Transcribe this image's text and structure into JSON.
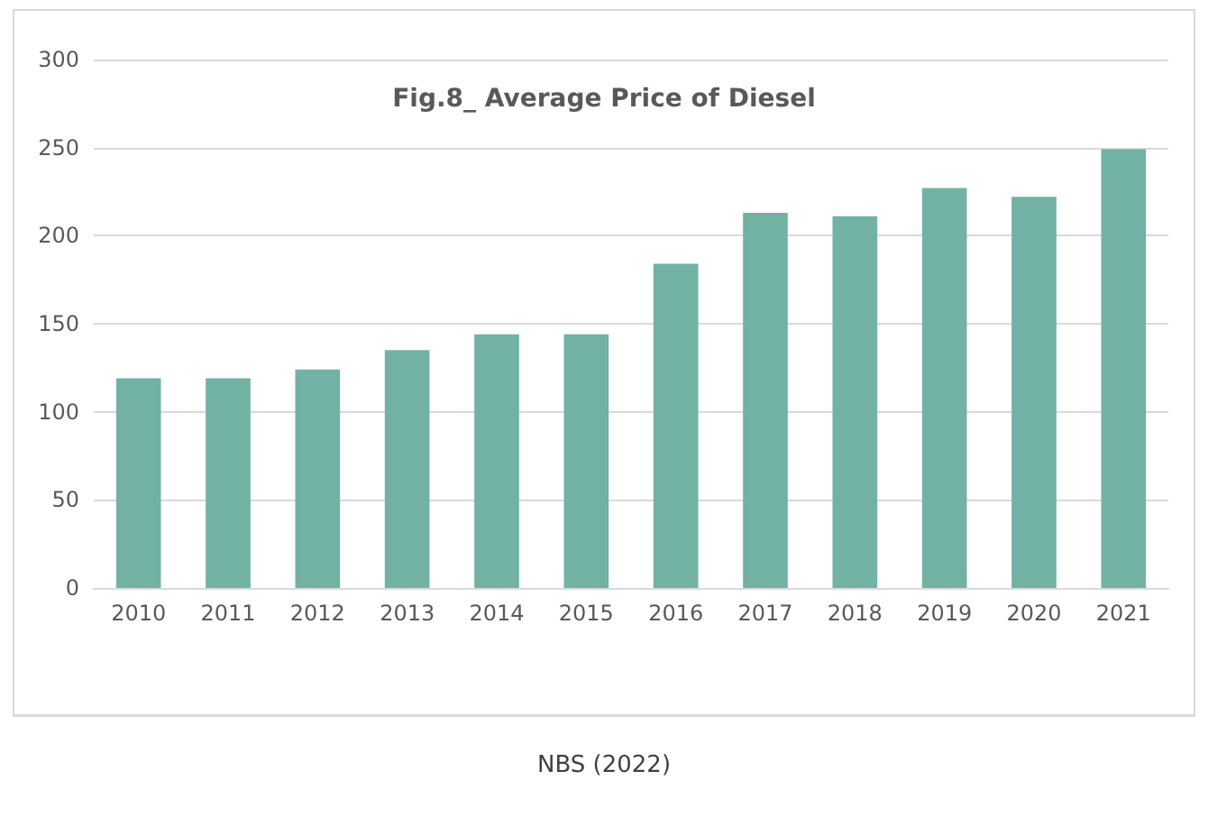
{
  "chart_data": {
    "type": "bar",
    "title": "Fig.8_ Average Price of Diesel",
    "categories": [
      "2010",
      "2011",
      "2012",
      "2013",
      "2014",
      "2015",
      "2016",
      "2017",
      "2018",
      "2019",
      "2020",
      "2021"
    ],
    "values": [
      119,
      119,
      124,
      135,
      144,
      144,
      184,
      213,
      211,
      227,
      222,
      249
    ],
    "color": "#72b2a5",
    "ylim": [
      0,
      300
    ],
    "yticks": [
      0,
      50,
      100,
      150,
      200,
      250,
      300
    ],
    "grid": "y",
    "annotations": [
      "NBS (2022)"
    ]
  }
}
